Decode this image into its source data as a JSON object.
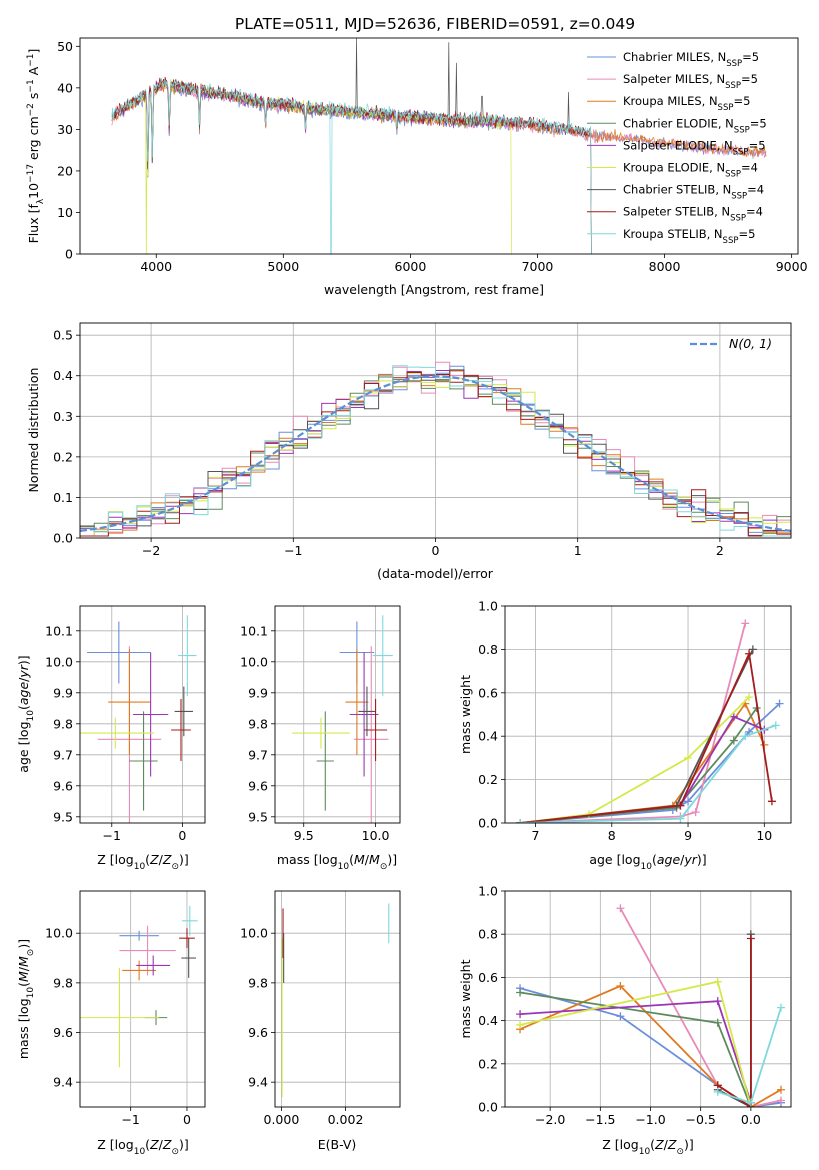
{
  "title": "PLATE=0511, MJD=52636, FIBERID=0591, z=0.049",
  "colors": {
    "Chabrier MILES": "#6a8fdc",
    "Salpeter MILES": "#e88ab8",
    "Kroupa MILES": "#e07a20",
    "Chabrier ELODIE": "#5d8a5d",
    "Salpeter ELODIE": "#9b35b5",
    "Kroupa ELODIE": "#d4e84a",
    "Chabrier STELIB": "#555555",
    "Salpeter STELIB": "#a51c1c",
    "Kroupa STELIB": "#7fd8dc",
    "normal": "#5b8fd6"
  },
  "chart_data": [
    {
      "id": "spectrum",
      "type": "line",
      "xlabel": "wavelength [Angstrom, rest frame]",
      "ylabel": "Flux [f_λ10⁻¹⁷ erg cm⁻² s⁻¹ A⁻¹]",
      "xlim": [
        3400,
        9050
      ],
      "ylim": [
        0,
        52
      ],
      "xticks": [
        "4000",
        "5000",
        "6000",
        "7000",
        "8000",
        "9000"
      ],
      "yticks": [
        "0",
        "10",
        "20",
        "30",
        "40",
        "50"
      ],
      "legend_position": "top-right",
      "legend": [
        {
          "main": "Chabrier MILES, N",
          "sub": "SSP",
          "tail": "=5"
        },
        {
          "main": "Salpeter MILES, N",
          "sub": "SSP",
          "tail": "=5"
        },
        {
          "main": "Kroupa MILES, N",
          "sub": "SSP",
          "tail": "=5"
        },
        {
          "main": "Chabrier ELODIE, N",
          "sub": "SSP",
          "tail": "=5"
        },
        {
          "main": "Salpeter ELODIE, N",
          "sub": "SSP",
          "tail": "=5"
        },
        {
          "main": "Kroupa ELODIE, N",
          "sub": "SSP",
          "tail": "=4"
        },
        {
          "main": "Chabrier STELIB, N",
          "sub": "SSP",
          "tail": "=4"
        },
        {
          "main": "Salpeter STELIB, N",
          "sub": "SSP",
          "tail": "=4"
        },
        {
          "main": "Kroupa STELIB, N",
          "sub": "SSP",
          "tail": "=5"
        }
      ],
      "continuum": {
        "x": [
          3650,
          3800,
          3950,
          4050,
          4200,
          4400,
          4600,
          4800,
          5000,
          5200,
          5400,
          5600,
          5800,
          6000,
          6200,
          6400,
          6600,
          6800,
          7000,
          7200,
          7400,
          7600,
          7800,
          8000,
          8200,
          8400,
          8600,
          8800
        ],
        "y": [
          33,
          36,
          39,
          41,
          40,
          39,
          38,
          36.5,
          36,
          35,
          34.5,
          34,
          33.5,
          33,
          32.5,
          32,
          32,
          31.5,
          31,
          30,
          29,
          28.5,
          28,
          27,
          26.5,
          25.8,
          25.2,
          24.8
        ]
      },
      "absorption_lines": [
        {
          "x": 3934,
          "y": 16
        },
        {
          "x": 3969,
          "y": 22
        },
        {
          "x": 4102,
          "y": 30
        },
        {
          "x": 4340,
          "y": 31
        },
        {
          "x": 4861,
          "y": 31
        },
        {
          "x": 5175,
          "y": 31
        },
        {
          "x": 5893,
          "y": 30
        }
      ],
      "dropouts": [
        {
          "x": 3920,
          "series": "Kroupa ELODIE"
        },
        {
          "x": 5375,
          "series": "Kroupa STELIB"
        },
        {
          "x": 6795,
          "series": "Kroupa ELODIE"
        }
      ],
      "emission_spikes": [
        {
          "x": 5577,
          "y": 52
        },
        {
          "x": 6300,
          "y": 51
        },
        {
          "x": 6363,
          "y": 46
        },
        {
          "x": 6563,
          "y": 38
        },
        {
          "x": 7245,
          "y": 39
        },
        {
          "x": 8345,
          "y": 36
        }
      ],
      "stelib_end": 7420,
      "elodie_end": 6800
    },
    {
      "id": "residuals",
      "type": "histogram",
      "xlabel": "(data-model)/error",
      "ylabel": "Normed distribution",
      "xlim": [
        -2.5,
        2.5
      ],
      "ylim": [
        0,
        0.53
      ],
      "xticks": [
        "−2",
        "−1",
        "0",
        "1",
        "2"
      ],
      "yticks": [
        "0.0",
        "0.1",
        "0.2",
        "0.3",
        "0.4",
        "0.5"
      ],
      "legend_position": "top-right",
      "legend_label": "N(0, 1)",
      "bin_width": 0.1
    },
    {
      "id": "age_vs_Z",
      "type": "errorbar",
      "xlabel": "Z [log10(Z/Z⊙)]",
      "ylabel": "age  [log10(age/yr)]",
      "xlim": [
        -1.45,
        0.32
      ],
      "ylim": [
        9.48,
        10.18
      ],
      "xticks": [
        "−1",
        "0"
      ],
      "yticks": [
        "9.5",
        "9.6",
        "9.7",
        "9.8",
        "9.9",
        "10.0",
        "10.1"
      ],
      "points": [
        {
          "s": "Chabrier MILES",
          "x": -0.9,
          "xe": 0.45,
          "y": 10.03,
          "ye": 0.1
        },
        {
          "s": "Salpeter MILES",
          "x": -0.75,
          "xe": 0.45,
          "y": 9.75,
          "ye": 0.3
        },
        {
          "s": "Kroupa MILES",
          "x": -0.75,
          "xe": 0.3,
          "y": 9.87,
          "ye": 0.17
        },
        {
          "s": "Chabrier ELODIE",
          "x": -0.55,
          "xe": 0.2,
          "y": 9.68,
          "ye": 0.16
        },
        {
          "s": "Salpeter ELODIE",
          "x": -0.45,
          "xe": 0.25,
          "y": 9.83,
          "ye": 0.2
        },
        {
          "s": "Kroupa ELODIE",
          "x": -0.95,
          "xe": 0.55,
          "y": 9.77,
          "ye": 0.05
        },
        {
          "s": "Chabrier STELIB",
          "x": 0.02,
          "xe": 0.13,
          "y": 9.84,
          "ye": 0.08
        },
        {
          "s": "Salpeter STELIB",
          "x": -0.02,
          "xe": 0.14,
          "y": 9.78,
          "ye": 0.1
        },
        {
          "s": "Kroupa STELIB",
          "x": 0.07,
          "xe": 0.13,
          "y": 10.02,
          "ye": 0.13
        }
      ]
    },
    {
      "id": "age_vs_mass",
      "type": "errorbar",
      "xlabel": "mass [log10(M/M⊙)]",
      "xlim": [
        9.3,
        10.17
      ],
      "ylim": [
        9.48,
        10.18
      ],
      "xticks": [
        "9.5",
        "10.0"
      ],
      "yticks": [
        "9.5",
        "9.6",
        "9.7",
        "9.8",
        "9.9",
        "10.0",
        "10.1"
      ],
      "points": [
        {
          "s": "Chabrier MILES",
          "x": 9.87,
          "xe": 0.12,
          "y": 10.03,
          "ye": 0.1
        },
        {
          "s": "Salpeter MILES",
          "x": 9.97,
          "xe": 0.12,
          "y": 9.75,
          "ye": 0.3
        },
        {
          "s": "Kroupa MILES",
          "x": 9.87,
          "xe": 0.08,
          "y": 9.87,
          "ye": 0.17
        },
        {
          "s": "Chabrier ELODIE",
          "x": 9.65,
          "xe": 0.06,
          "y": 9.68,
          "ye": 0.16
        },
        {
          "s": "Salpeter ELODIE",
          "x": 9.92,
          "xe": 0.1,
          "y": 9.83,
          "ye": 0.2
        },
        {
          "s": "Kroupa ELODIE",
          "x": 9.62,
          "xe": 0.2,
          "y": 9.77,
          "ye": 0.05
        },
        {
          "s": "Chabrier STELIB",
          "x": 9.94,
          "xe": 0.06,
          "y": 9.84,
          "ye": 0.08
        },
        {
          "s": "Salpeter STELIB",
          "x": 10.0,
          "xe": 0.08,
          "y": 9.78,
          "ye": 0.1
        },
        {
          "s": "Kroupa STELIB",
          "x": 10.05,
          "xe": 0.07,
          "y": 10.02,
          "ye": 0.13
        }
      ]
    },
    {
      "id": "weight_vs_age",
      "type": "line",
      "xlabel": "age  [log10(age/yr)]",
      "ylabel": "mass weight",
      "xlim": [
        6.6,
        10.35
      ],
      "ylim": [
        0,
        1.0
      ],
      "xticks": [
        "7",
        "8",
        "9",
        "10"
      ],
      "yticks": [
        "0.0",
        "0.2",
        "0.4",
        "0.6",
        "0.8",
        "1.0"
      ],
      "series": [
        {
          "s": "Chabrier MILES",
          "x": [
            6.8,
            8.8,
            9.0,
            9.8,
            10.2
          ],
          "y": [
            0.0,
            0.06,
            0.1,
            0.42,
            0.55
          ]
        },
        {
          "s": "Salpeter MILES",
          "x": [
            6.8,
            8.9,
            9.1,
            9.75
          ],
          "y": [
            0.0,
            0.03,
            0.05,
            0.92
          ]
        },
        {
          "s": "Kroupa MILES",
          "x": [
            6.8,
            8.8,
            9.75,
            10.0
          ],
          "y": [
            0.0,
            0.08,
            0.55,
            0.36
          ]
        },
        {
          "s": "Chabrier ELODIE",
          "x": [
            6.8,
            8.85,
            9.6,
            9.9
          ],
          "y": [
            0.0,
            0.07,
            0.38,
            0.53
          ]
        },
        {
          "s": "Salpeter ELODIE",
          "x": [
            6.8,
            8.9,
            9.6,
            10.0
          ],
          "y": [
            0.0,
            0.08,
            0.49,
            0.43
          ]
        },
        {
          "s": "Kroupa ELODIE",
          "x": [
            6.8,
            7.7,
            9.0,
            9.8
          ],
          "y": [
            0.0,
            0.04,
            0.3,
            0.58
          ]
        },
        {
          "s": "Chabrier STELIB",
          "x": [
            6.8,
            8.85,
            9.85
          ],
          "y": [
            0.0,
            0.08,
            0.8
          ]
        },
        {
          "s": "Salpeter STELIB",
          "x": [
            6.8,
            8.9,
            9.8,
            10.1
          ],
          "y": [
            0.0,
            0.08,
            0.78,
            0.1
          ]
        },
        {
          "s": "Kroupa STELIB",
          "x": [
            6.8,
            8.9,
            9.75,
            10.15
          ],
          "y": [
            0.0,
            0.02,
            0.4,
            0.45
          ]
        }
      ]
    },
    {
      "id": "mass_vs_Z",
      "type": "errorbar",
      "xlabel": "Z [log10(Z/Z⊙)]",
      "ylabel": "mass [log10(M/M⊙)]",
      "xlim": [
        -1.9,
        0.32
      ],
      "ylim": [
        9.3,
        10.17
      ],
      "xticks": [
        "−1",
        "0"
      ],
      "yticks": [
        "9.4",
        "9.6",
        "9.8",
        "10.0"
      ],
      "points": [
        {
          "s": "Chabrier MILES",
          "x": -0.85,
          "xe": 0.35,
          "y": 9.99,
          "ye": 0.02
        },
        {
          "s": "Salpeter MILES",
          "x": -0.7,
          "xe": 0.5,
          "y": 9.93,
          "ye": 0.1
        },
        {
          "s": "Kroupa MILES",
          "x": -0.85,
          "xe": 0.3,
          "y": 9.85,
          "ye": 0.04
        },
        {
          "s": "Chabrier ELODIE",
          "x": -0.55,
          "xe": 0.2,
          "y": 9.66,
          "ye": 0.03
        },
        {
          "s": "Salpeter ELODIE",
          "x": -0.6,
          "xe": 0.3,
          "y": 9.87,
          "ye": 0.04
        },
        {
          "s": "Kroupa ELODIE",
          "x": -1.2,
          "xe": 0.7,
          "y": 9.66,
          "ye": 0.2
        },
        {
          "s": "Chabrier STELIB",
          "x": 0.03,
          "xe": 0.13,
          "y": 9.9,
          "ye": 0.08
        },
        {
          "s": "Salpeter STELIB",
          "x": 0.0,
          "xe": 0.14,
          "y": 9.98,
          "ye": 0.04
        },
        {
          "s": "Kroupa STELIB",
          "x": 0.05,
          "xe": 0.14,
          "y": 10.05,
          "ye": 0.06
        }
      ]
    },
    {
      "id": "mass_vs_ebv",
      "type": "errorbar",
      "xlabel": "E(B-V)",
      "xlim": [
        -0.0002,
        0.0037
      ],
      "ylim": [
        9.3,
        10.17
      ],
      "xticks": [
        "0.000",
        "0.002"
      ],
      "yticks": [
        "9.4",
        "9.6",
        "9.8",
        "10.0"
      ],
      "points": [
        {
          "s": "Kroupa ELODIE",
          "x": 2e-05,
          "xe": 0.0,
          "y": 9.66,
          "ye": 0.32
        },
        {
          "s": "Salpeter STELIB",
          "x": 5e-05,
          "xe": 0.0,
          "y": 10.0,
          "ye": 0.1
        },
        {
          "s": "Chabrier STELIB",
          "x": 7e-05,
          "xe": 0.0,
          "y": 9.9,
          "ye": 0.1
        },
        {
          "s": "Kroupa STELIB",
          "x": 0.00335,
          "xe": 0.0,
          "y": 10.04,
          "ye": 0.08
        }
      ]
    },
    {
      "id": "weight_vs_Z",
      "type": "line",
      "xlabel": "Z [log10(Z/Z⊙)]",
      "ylabel": "mass weight",
      "xlim": [
        -2.45,
        0.4
      ],
      "ylim": [
        0,
        1.0
      ],
      "xticks": [
        "−2.0",
        "−1.5",
        "−1.0",
        "−0.5",
        "0.0"
      ],
      "yticks": [
        "0.0",
        "0.2",
        "0.4",
        "0.6",
        "0.8",
        "1.0"
      ],
      "series": [
        {
          "s": "Chabrier MILES",
          "x": [
            -2.3,
            -1.3,
            -0.33,
            0.0,
            0.3
          ],
          "y": [
            0.55,
            0.42,
            0.1,
            0.0,
            0.02
          ]
        },
        {
          "s": "Salpeter MILES",
          "x": [
            -1.3,
            -0.33,
            0.0,
            0.3
          ],
          "y": [
            0.92,
            0.1,
            0.0,
            0.03
          ]
        },
        {
          "s": "Kroupa MILES",
          "x": [
            -2.3,
            -1.3,
            -0.33,
            0.0,
            0.3
          ],
          "y": [
            0.36,
            0.56,
            0.1,
            0.0,
            0.08
          ]
        },
        {
          "s": "Chabrier ELODIE",
          "x": [
            -2.3,
            -0.33,
            0.0
          ],
          "y": [
            0.53,
            0.39,
            0.0
          ]
        },
        {
          "s": "Salpeter ELODIE",
          "x": [
            -2.3,
            -0.33,
            0.0
          ],
          "y": [
            0.43,
            0.49,
            0.02
          ]
        },
        {
          "s": "Kroupa ELODIE",
          "x": [
            -2.3,
            -0.33,
            0.0
          ],
          "y": [
            0.38,
            0.58,
            0.0
          ]
        },
        {
          "s": "Chabrier STELIB",
          "x": [
            -0.33,
            0.0,
            0.0
          ],
          "y": [
            0.08,
            0.0,
            0.8
          ]
        },
        {
          "s": "Salpeter STELIB",
          "x": [
            -0.33,
            0.0,
            0.0
          ],
          "y": [
            0.1,
            0.0,
            0.78
          ]
        },
        {
          "s": "Kroupa STELIB",
          "x": [
            -0.33,
            0.0,
            0.3
          ],
          "y": [
            0.07,
            0.02,
            0.46
          ]
        }
      ]
    }
  ]
}
